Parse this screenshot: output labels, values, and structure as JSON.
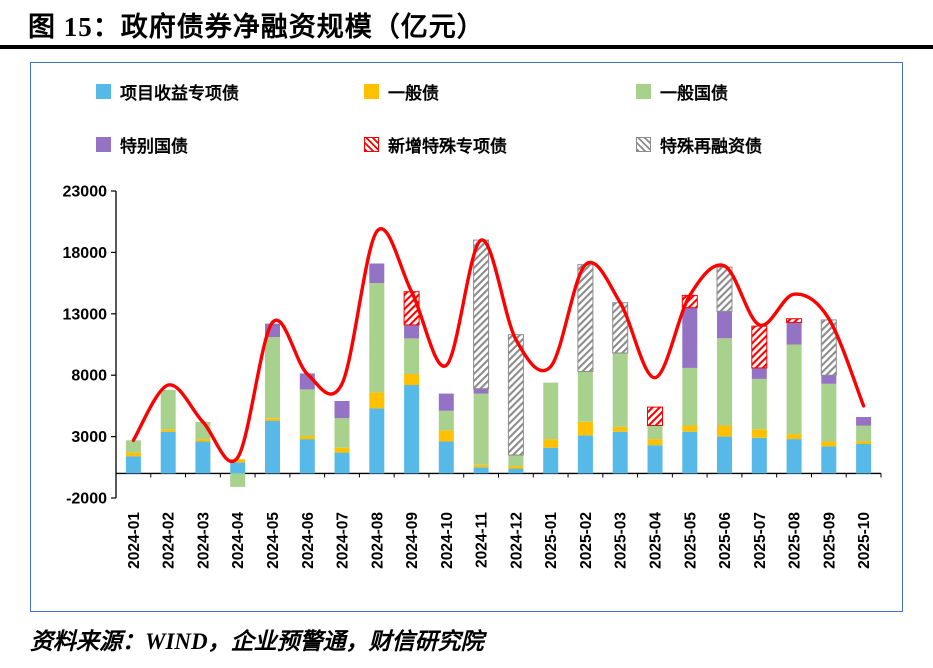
{
  "page": {
    "title": "图 15：政府债券净融资规模（亿元）",
    "source": "资料来源：WIND，企业预警通，财信研究院"
  },
  "chart_data": {
    "type": "bar",
    "stacked": true,
    "title": "政府债券净融资规模（亿元）",
    "unit": "亿元",
    "legend_position": "top",
    "grid": false,
    "ylim": [
      -2000,
      23000
    ],
    "yticks": [
      23000,
      18000,
      13000,
      8000,
      3000,
      -2000
    ],
    "categories": [
      "2024-01",
      "2024-02",
      "2024-03",
      "2024-04",
      "2024-05",
      "2024-06",
      "2024-07",
      "2024-08",
      "2024-09",
      "2024-10",
      "2024-11",
      "2024-12",
      "2025-01",
      "2025-02",
      "2025-03",
      "2025-04",
      "2025-05",
      "2025-06",
      "2025-07",
      "2025-08",
      "2025-09",
      "2025-10"
    ],
    "series": [
      {
        "name": "项目收益专项债",
        "color": "#56B9E8",
        "pattern": "solid",
        "values": [
          1400,
          3400,
          2600,
          900,
          4300,
          2800,
          1700,
          5300,
          7200,
          2600,
          500,
          400,
          2100,
          3100,
          3400,
          2300,
          3400,
          3000,
          2900,
          2800,
          2200,
          2400
        ]
      },
      {
        "name": "一般债",
        "color": "#FFC000",
        "pattern": "solid",
        "values": [
          300,
          200,
          200,
          250,
          200,
          250,
          400,
          1300,
          900,
          900,
          200,
          200,
          700,
          1100,
          400,
          500,
          500,
          900,
          700,
          400,
          400,
          200
        ]
      },
      {
        "name": "一般国债",
        "color": "#A9D18E",
        "pattern": "solid",
        "values": [
          1000,
          3200,
          1400,
          -1100,
          6600,
          3800,
          2400,
          8900,
          2900,
          1600,
          5800,
          900,
          4600,
          4100,
          6000,
          1100,
          4700,
          7100,
          4100,
          7300,
          4700,
          1300
        ]
      },
      {
        "name": "特别国债",
        "color": "#9473C5",
        "pattern": "solid",
        "values": [
          0,
          0,
          0,
          0,
          1100,
          1300,
          1400,
          1600,
          1100,
          1400,
          400,
          0,
          0,
          0,
          0,
          0,
          4900,
          2200,
          900,
          1800,
          700,
          700
        ]
      },
      {
        "name": "新增特殊专项债",
        "color": "#FF0000",
        "pattern": "hatch",
        "values": [
          0,
          0,
          0,
          0,
          0,
          0,
          0,
          0,
          2700,
          0,
          0,
          0,
          0,
          0,
          0,
          1500,
          1000,
          0,
          3400,
          300,
          0,
          0
        ]
      },
      {
        "name": "特殊再融资债",
        "color": "#8C8C8C",
        "pattern": "hatch",
        "values": [
          0,
          0,
          0,
          0,
          0,
          0,
          0,
          0,
          0,
          0,
          12100,
          9800,
          0,
          8700,
          4100,
          0,
          0,
          3600,
          0,
          0,
          4500,
          0
        ]
      }
    ],
    "line": {
      "color": "#FF0000",
      "values": [
        2700,
        7200,
        4200,
        1300,
        12300,
        8100,
        7300,
        19700,
        14800,
        8800,
        19000,
        10900,
        8700,
        17000,
        13900,
        7800,
        14500,
        16900,
        12100,
        14600,
        12600,
        5500
      ]
    }
  }
}
